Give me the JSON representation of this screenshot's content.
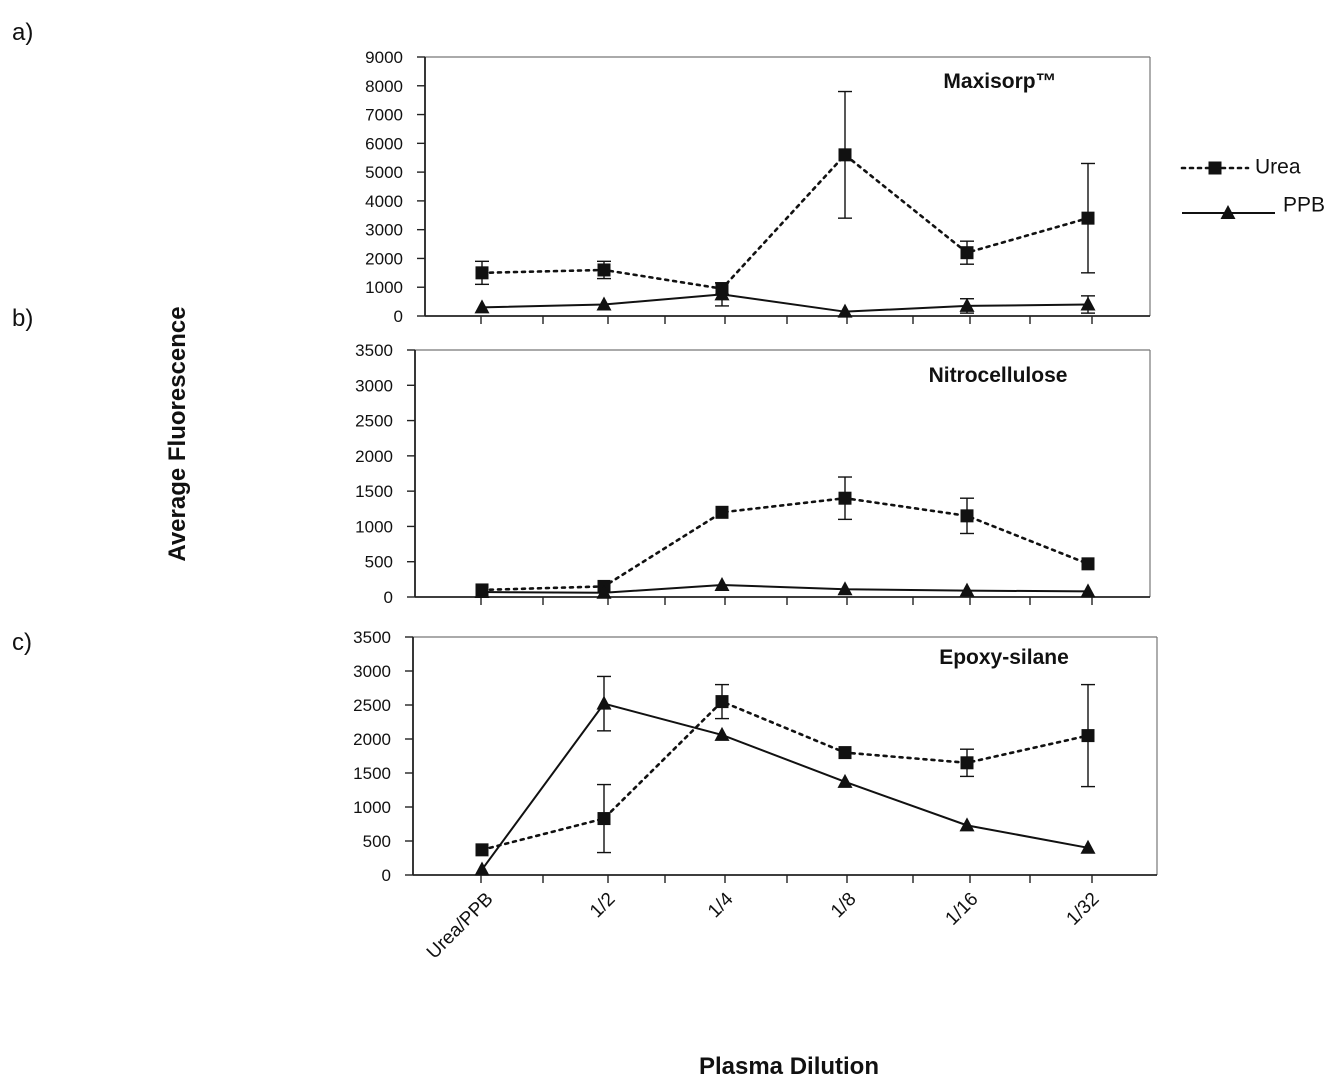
{
  "chart_data": {
    "type": "line",
    "ylabel": "Average Fluorescence",
    "xlabel": "Plasma Dilution",
    "categories": [
      "Urea/PPB",
      "1/2",
      "1/4",
      "1/8",
      "1/16",
      "1/32"
    ],
    "legend": {
      "placement": "right",
      "entries": [
        {
          "name": "Urea",
          "line": "dotted",
          "marker": "square"
        },
        {
          "name": "PPB",
          "line": "solid",
          "marker": "triangle"
        }
      ]
    },
    "panels": [
      {
        "letter": "a)",
        "title": "Maxisorp™",
        "ylim": [
          0,
          9000
        ],
        "yticks": [
          0,
          1000,
          2000,
          3000,
          4000,
          5000,
          6000,
          7000,
          8000,
          9000
        ],
        "series": [
          {
            "name": "Urea",
            "values": [
              1500,
              1600,
              950,
              5600,
              2200,
              3400
            ],
            "err": [
              400,
              300,
              200,
              2200,
              400,
              1900
            ]
          },
          {
            "name": "PPB",
            "values": [
              300,
              400,
              750,
              150,
              350,
              400
            ],
            "err": [
              0,
              0,
              400,
              0,
              250,
              300
            ]
          }
        ]
      },
      {
        "letter": "b)",
        "title": "Nitrocellulose",
        "ylim": [
          0,
          3500
        ],
        "yticks": [
          0,
          500,
          1000,
          1500,
          2000,
          2500,
          3000,
          3500
        ],
        "series": [
          {
            "name": "Urea",
            "values": [
              100,
              150,
              1200,
              1400,
              1150,
              470
            ],
            "err": [
              0,
              0,
              0,
              300,
              250,
              0
            ]
          },
          {
            "name": "PPB",
            "values": [
              70,
              60,
              170,
              110,
              90,
              80
            ],
            "err": [
              0,
              0,
              0,
              0,
              0,
              0
            ]
          }
        ]
      },
      {
        "letter": "c)",
        "title": "Epoxy-silane",
        "ylim": [
          0,
          3500
        ],
        "yticks": [
          0,
          500,
          1000,
          1500,
          2000,
          2500,
          3000,
          3500
        ],
        "series": [
          {
            "name": "Urea",
            "values": [
              370,
              830,
              2550,
              1800,
              1650,
              2050
            ],
            "err": [
              0,
              500,
              250,
              0,
              200,
              750
            ]
          },
          {
            "name": "PPB",
            "values": [
              80,
              2520,
              2060,
              1370,
              730,
              400
            ],
            "err": [
              0,
              400,
              0,
              0,
              0,
              0
            ]
          }
        ]
      }
    ]
  }
}
